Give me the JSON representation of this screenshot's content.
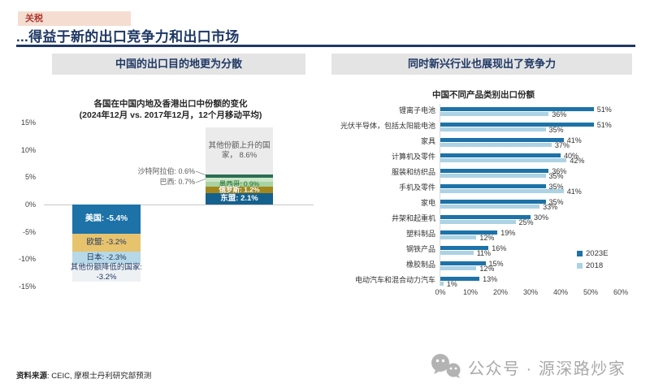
{
  "meta": {
    "tag": "关税",
    "title": "...得益于新的出口竞争力和出口市场"
  },
  "left_panel": {
    "header": "中国的出口目的地更为分散"
  },
  "right_panel": {
    "header": "同时新兴行业也展现出了竞争力"
  },
  "source": {
    "label": "资料来源",
    "text": ": CEIC, 摩根士丹利研究部预测"
  },
  "watermark": {
    "icon": "wechat-icon",
    "text": "公众号 · 源深路炒家"
  },
  "chart_data": [
    {
      "type": "bar",
      "subtype": "diverging-stacked-column",
      "title": "各国在中国内地及香港出口中份额的变化",
      "subtitle": "(2024年12月 vs. 2017年12月，12个月移动平均)",
      "unit": "%",
      "ylim": [
        -15,
        15
      ],
      "yticks": [
        15,
        10,
        5,
        0,
        -5,
        -10,
        -15
      ],
      "grid": "zero-line-only",
      "decreasing_stack": [
        {
          "label": "美国",
          "value": -5.4,
          "display": "美国: -5.4%",
          "color": "#1D72A8",
          "text_color": "#FFFFFF",
          "bold": true
        },
        {
          "label": "欧盟",
          "value": -3.2,
          "display": "欧盟: -3.2%",
          "color": "#E7C36D",
          "text_color": "#1F3864"
        },
        {
          "label": "日本",
          "value": -2.3,
          "display": "日本: -2.3%",
          "color": "#B7D8E6",
          "text_color": "#1F3864"
        },
        {
          "label": "其他份额降低的国家",
          "value": -3.2,
          "display": "其他份额降低的国家: -3.2%",
          "color": "#EDF1F4",
          "text_color": "#1F3864",
          "wrap": true
        }
      ],
      "increasing_stack": [
        {
          "label": "其他份额上升的国家",
          "value": 8.6,
          "display": "其他份额上升的国家， 8.6%",
          "color": "#EBEBEB",
          "text_color": "#595959",
          "wrap": true
        },
        {
          "label": "沙特阿拉伯",
          "value": 0.6,
          "color": "#2B6E54"
        },
        {
          "label": "巴西",
          "value": 0.7,
          "color": "#CBE5C6"
        },
        {
          "label": "墨西哥",
          "value": 0.9,
          "display": "墨西哥: 0.9%",
          "color": "#A8D2A0",
          "text_color": "#1D6B34"
        },
        {
          "label": "俄罗斯",
          "value": 1.2,
          "display": "俄罗斯: 1.2%",
          "color": "#A3871D",
          "text_color": "#FFFFFF",
          "bold": true
        },
        {
          "label": "东盟",
          "value": 2.1,
          "display": "东盟: 2.1%",
          "color": "#15618E",
          "text_color": "#FFFFFF",
          "bold": true
        }
      ],
      "callouts": [
        {
          "text": "沙特阿拉伯: 0.6%"
        },
        {
          "text": "巴西: 0.7%"
        }
      ]
    },
    {
      "type": "bar",
      "subtype": "horizontal-grouped",
      "title": "中国不同产品类别出口份额",
      "xlim": [
        0,
        60
      ],
      "xticks": [
        "0%",
        "10%",
        "20%",
        "30%",
        "40%",
        "50%",
        "60%"
      ],
      "legend_position": "right-middle",
      "legend": [
        {
          "name": "2023E",
          "color": "#1D72A8"
        },
        {
          "name": "2018",
          "color": "#ACD2E4"
        }
      ],
      "categories": [
        "锂离子电池",
        "光伏半导体，包括太阳能电池",
        "家具",
        "计算机及零件",
        "服装和纺织品",
        "手机及零件",
        "家电",
        "井架和起重机",
        "塑料制品",
        "钢铁产品",
        "橡胶制品",
        "电动汽车和混合动力汽车"
      ],
      "series": [
        {
          "name": "2023E",
          "values": [
            51,
            51,
            41,
            40,
            36,
            35,
            35,
            30,
            19,
            16,
            15,
            13
          ]
        },
        {
          "name": "2018",
          "values": [
            36,
            35,
            37,
            42,
            35,
            41,
            33,
            25,
            12,
            11,
            12,
            1
          ]
        }
      ]
    }
  ]
}
